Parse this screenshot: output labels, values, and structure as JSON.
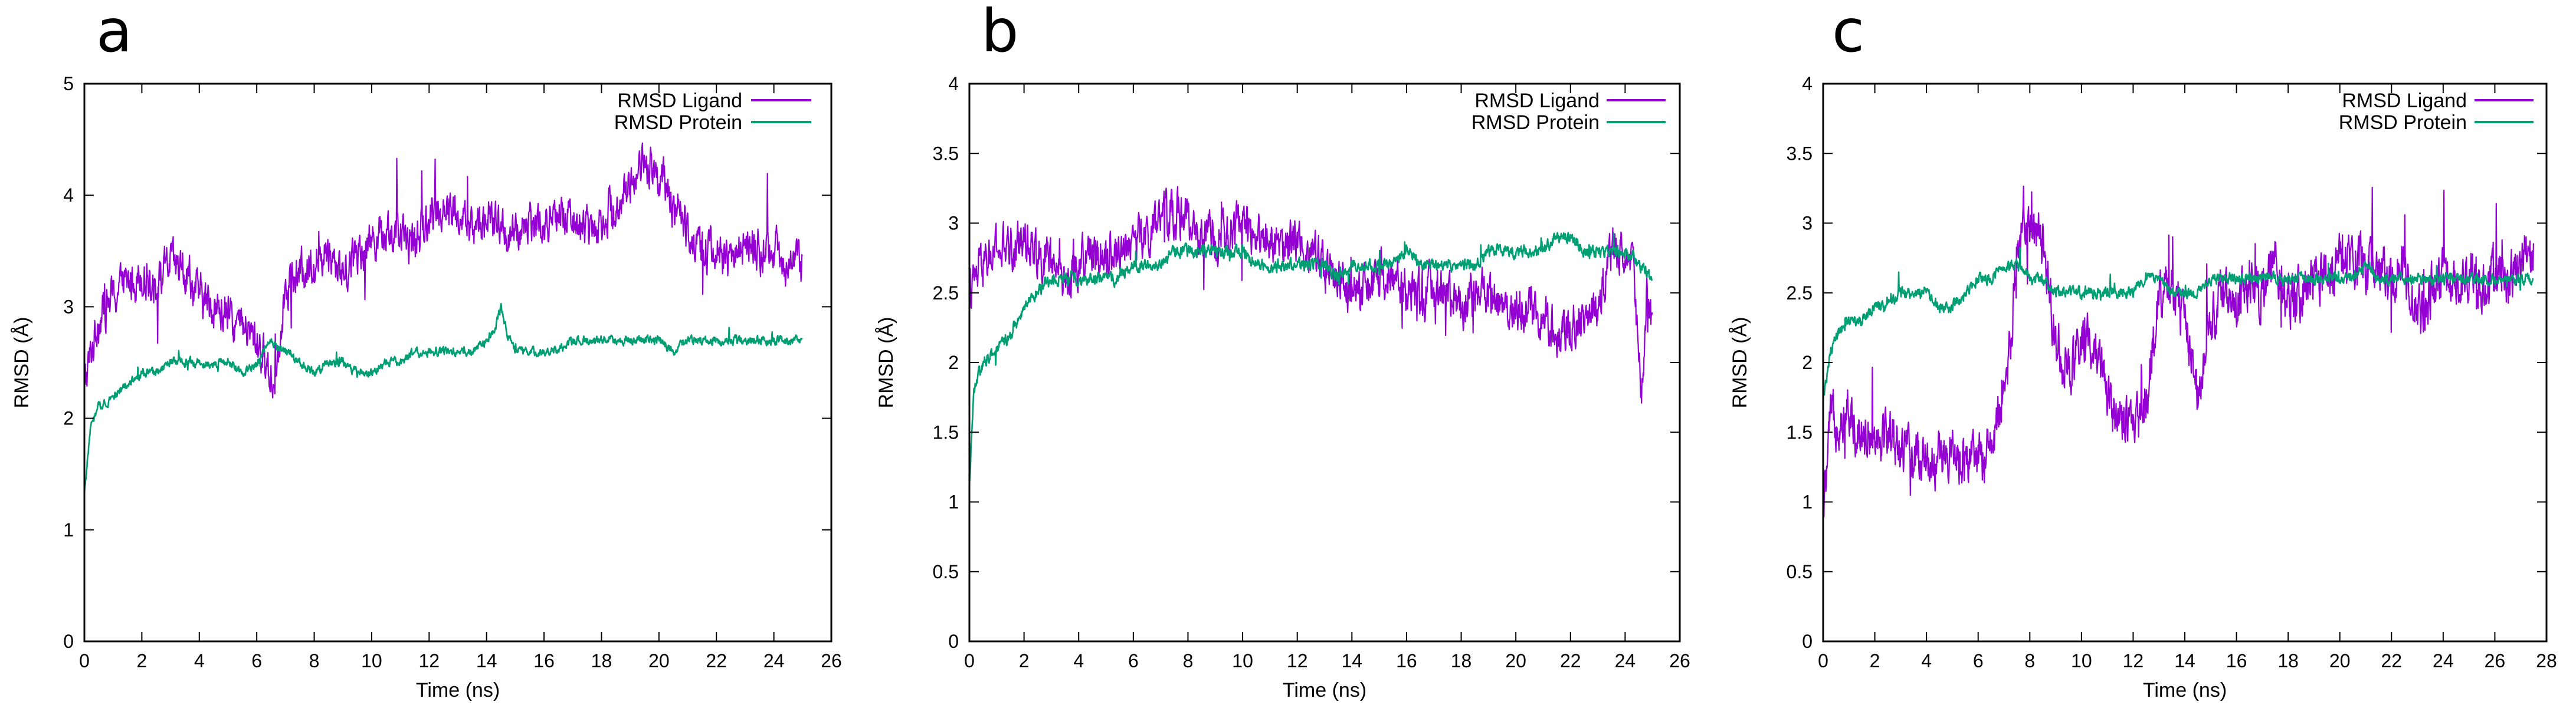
{
  "colors": {
    "ligand": "#9400d3",
    "protein": "#009e73",
    "axis": "#000000"
  },
  "chart_data": [
    {
      "type": "line",
      "panel_label": "a",
      "xlabel": "Time (ns)",
      "ylabel": "RMSD (Å)",
      "xlim": [
        0,
        26
      ],
      "ylim": [
        0,
        5
      ],
      "xticks": [
        "0",
        "2",
        "4",
        "6",
        "8",
        "10",
        "12",
        "14",
        "16",
        "18",
        "20",
        "22",
        "24",
        "26"
      ],
      "yticks": [
        "0",
        "1",
        "2",
        "3",
        "4",
        "5"
      ],
      "legend_position": "top-right",
      "series": [
        {
          "name": "RMSD Ligand",
          "key": "ligand",
          "x": [
            0,
            0.5,
            1,
            1.5,
            2,
            2.5,
            3,
            3.5,
            4,
            4.5,
            5,
            5.5,
            6,
            6.3,
            6.6,
            7,
            7.5,
            8,
            8.5,
            9,
            9.5,
            10,
            10.5,
            11,
            11.5,
            12,
            12.5,
            13,
            13.5,
            14,
            14.5,
            15,
            15.5,
            16,
            16.5,
            17,
            17.5,
            18,
            18.5,
            19,
            19.5,
            20,
            20.5,
            21,
            21.5,
            22,
            22.5,
            23,
            23.5,
            24,
            24.5,
            25
          ],
          "y": [
            2.3,
            2.9,
            3.1,
            3.2,
            3.3,
            3.2,
            3.4,
            3.3,
            3.1,
            3.0,
            2.9,
            2.8,
            2.7,
            2.5,
            2.3,
            3.2,
            3.3,
            3.4,
            3.5,
            3.3,
            3.5,
            3.6,
            3.7,
            3.6,
            3.6,
            3.8,
            3.9,
            3.8,
            3.7,
            3.8,
            3.7,
            3.6,
            3.8,
            3.7,
            3.8,
            3.8,
            3.7,
            3.8,
            3.9,
            4.1,
            4.3,
            4.2,
            3.9,
            3.7,
            3.5,
            3.5,
            3.4,
            3.6,
            3.5,
            3.5,
            3.4,
            3.4
          ],
          "noise": 0.33
        },
        {
          "name": "RMSD Protein",
          "key": "protein",
          "x": [
            0,
            0.2,
            0.5,
            1,
            1.5,
            2,
            2.5,
            3,
            3.5,
            4,
            4.5,
            5,
            5.5,
            6,
            6.5,
            7,
            7.5,
            8,
            8.5,
            9,
            9.5,
            10,
            10.5,
            11,
            11.5,
            12,
            12.5,
            13,
            13.5,
            14,
            14.3,
            14.5,
            14.8,
            15,
            15.5,
            16,
            16.5,
            17,
            17.5,
            18,
            18.5,
            19,
            19.5,
            20,
            20.5,
            21,
            21.5,
            22,
            22.5,
            23,
            23.5,
            24,
            24.5,
            25
          ],
          "y": [
            1.3,
            1.9,
            2.1,
            2.2,
            2.3,
            2.4,
            2.4,
            2.5,
            2.5,
            2.5,
            2.5,
            2.5,
            2.4,
            2.5,
            2.7,
            2.6,
            2.5,
            2.4,
            2.5,
            2.5,
            2.4,
            2.4,
            2.5,
            2.5,
            2.6,
            2.6,
            2.6,
            2.6,
            2.6,
            2.7,
            2.8,
            3.0,
            2.7,
            2.6,
            2.6,
            2.6,
            2.6,
            2.7,
            2.7,
            2.7,
            2.7,
            2.7,
            2.7,
            2.7,
            2.6,
            2.7,
            2.7,
            2.7,
            2.7,
            2.7,
            2.7,
            2.7,
            2.7,
            2.7
          ],
          "noise": 0.07
        }
      ]
    },
    {
      "type": "line",
      "panel_label": "b",
      "xlabel": "Time (ns)",
      "ylabel": "RMSD (Å)",
      "xlim": [
        0,
        26
      ],
      "ylim": [
        0,
        4
      ],
      "xticks": [
        "0",
        "2",
        "4",
        "6",
        "8",
        "10",
        "12",
        "14",
        "16",
        "18",
        "20",
        "22",
        "24",
        "26"
      ],
      "yticks": [
        "0",
        "0.5",
        "1",
        "1.5",
        "2",
        "2.5",
        "3",
        "3.5",
        "4"
      ],
      "legend_position": "top-right",
      "series": [
        {
          "name": "RMSD Ligand",
          "key": "ligand",
          "x": [
            0,
            0.5,
            1,
            1.5,
            2,
            2.5,
            3,
            3.5,
            4,
            4.5,
            5,
            5.5,
            6,
            6.5,
            7,
            7.5,
            8,
            8.5,
            9,
            9.5,
            10,
            10.5,
            11,
            11.5,
            12,
            12.5,
            13,
            13.5,
            14,
            14.5,
            15,
            15.5,
            16,
            16.5,
            17,
            17.5,
            18,
            18.5,
            19,
            19.5,
            20,
            20.5,
            21,
            21.5,
            22,
            22.5,
            23,
            23.5,
            24,
            24.3,
            24.6,
            24.8,
            25
          ],
          "y": [
            2.5,
            2.7,
            2.8,
            2.8,
            2.9,
            2.8,
            2.7,
            2.6,
            2.7,
            2.8,
            2.8,
            2.8,
            2.9,
            2.9,
            3.0,
            3.1,
            3.0,
            2.9,
            2.9,
            2.9,
            3.0,
            2.9,
            2.9,
            2.8,
            2.9,
            2.8,
            2.7,
            2.6,
            2.5,
            2.5,
            2.6,
            2.6,
            2.5,
            2.5,
            2.5,
            2.5,
            2.4,
            2.5,
            2.5,
            2.4,
            2.4,
            2.4,
            2.3,
            2.2,
            2.3,
            2.3,
            2.4,
            2.8,
            2.8,
            2.6,
            1.7,
            2.5,
            2.3
          ],
          "noise": 0.28
        },
        {
          "name": "RMSD Protein",
          "key": "protein",
          "x": [
            0,
            0.15,
            0.5,
            1,
            1.5,
            2,
            2.5,
            3,
            3.5,
            4,
            4.5,
            5,
            5.5,
            6,
            6.5,
            7,
            7.5,
            8,
            8.5,
            9,
            9.5,
            10,
            10.5,
            11,
            11.5,
            12,
            12.5,
            13,
            13.5,
            14,
            14.5,
            15,
            15.5,
            16,
            16.5,
            17,
            17.5,
            18,
            18.5,
            19,
            19.5,
            20,
            20.5,
            21,
            21.5,
            22,
            22.5,
            23,
            23.5,
            24,
            24.5,
            25
          ],
          "y": [
            1.1,
            1.8,
            2.0,
            2.1,
            2.2,
            2.4,
            2.5,
            2.6,
            2.6,
            2.6,
            2.6,
            2.6,
            2.6,
            2.7,
            2.7,
            2.7,
            2.8,
            2.8,
            2.8,
            2.8,
            2.8,
            2.8,
            2.7,
            2.7,
            2.7,
            2.7,
            2.7,
            2.7,
            2.6,
            2.7,
            2.7,
            2.7,
            2.7,
            2.8,
            2.7,
            2.7,
            2.7,
            2.7,
            2.7,
            2.8,
            2.8,
            2.8,
            2.8,
            2.8,
            2.9,
            2.9,
            2.8,
            2.8,
            2.8,
            2.8,
            2.7,
            2.6
          ],
          "noise": 0.08
        }
      ]
    },
    {
      "type": "line",
      "panel_label": "c",
      "xlabel": "Time (ns)",
      "ylabel": "RMSD (Å)",
      "xlim": [
        0,
        28
      ],
      "ylim": [
        0,
        4
      ],
      "xticks": [
        "0",
        "2",
        "4",
        "6",
        "8",
        "10",
        "12",
        "14",
        "16",
        "18",
        "20",
        "22",
        "24",
        "26",
        "28"
      ],
      "yticks": [
        "0",
        "0.5",
        "1",
        "1.5",
        "2",
        "2.5",
        "3",
        "3.5",
        "4"
      ],
      "legend_position": "top-right",
      "series": [
        {
          "name": "RMSD Ligand",
          "key": "ligand",
          "x": [
            0,
            0.3,
            0.6,
            1,
            1.5,
            2,
            2.5,
            3,
            3.5,
            4,
            4.5,
            5,
            5.5,
            6,
            6.5,
            7,
            7.3,
            7.6,
            8,
            8.5,
            9,
            9.5,
            10,
            10.5,
            11,
            11.5,
            12,
            12.5,
            13,
            13.5,
            14,
            14.5,
            15,
            15.5,
            16,
            16.5,
            17,
            17.5,
            18,
            18.5,
            19,
            19.5,
            20,
            20.5,
            21,
            21.5,
            22,
            22.5,
            23,
            23.5,
            24,
            24.5,
            25,
            25.5,
            26,
            26.5,
            27,
            27.5
          ],
          "y": [
            0.9,
            1.6,
            1.6,
            1.6,
            1.5,
            1.5,
            1.5,
            1.4,
            1.3,
            1.3,
            1.3,
            1.3,
            1.3,
            1.3,
            1.4,
            1.7,
            2.3,
            2.9,
            3.0,
            2.8,
            2.2,
            1.9,
            2.1,
            2.2,
            1.8,
            1.6,
            1.5,
            1.7,
            2.5,
            2.5,
            2.3,
            1.8,
            2.3,
            2.5,
            2.4,
            2.6,
            2.5,
            2.7,
            2.4,
            2.5,
            2.6,
            2.6,
            2.7,
            2.8,
            2.7,
            2.7,
            2.6,
            2.7,
            2.3,
            2.5,
            2.6,
            2.6,
            2.6,
            2.5,
            2.6,
            2.6,
            2.7,
            2.8
          ],
          "noise": 0.32
        },
        {
          "name": "RMSD Protein",
          "key": "protein",
          "x": [
            0,
            0.2,
            0.5,
            1,
            1.5,
            2,
            2.5,
            3,
            3.5,
            4,
            4.5,
            5,
            5.5,
            6,
            6.5,
            7,
            7.5,
            8,
            8.5,
            9,
            9.5,
            10,
            10.5,
            11,
            11.5,
            12,
            12.5,
            13,
            13.5,
            14,
            14.5,
            15,
            15.5,
            16,
            16.5,
            17,
            17.5,
            18,
            18.5,
            19,
            19.5,
            20,
            20.5,
            21,
            21.5,
            22,
            22.5,
            23,
            23.5,
            24,
            24.5,
            25,
            25.5,
            26,
            26.5,
            27,
            27.5
          ],
          "y": [
            1.7,
            2.0,
            2.2,
            2.3,
            2.3,
            2.4,
            2.4,
            2.5,
            2.5,
            2.5,
            2.4,
            2.4,
            2.5,
            2.6,
            2.6,
            2.7,
            2.7,
            2.6,
            2.6,
            2.5,
            2.5,
            2.5,
            2.5,
            2.5,
            2.5,
            2.5,
            2.6,
            2.6,
            2.5,
            2.5,
            2.5,
            2.6,
            2.6,
            2.6,
            2.6,
            2.6,
            2.6,
            2.6,
            2.6,
            2.6,
            2.6,
            2.6,
            2.6,
            2.7,
            2.6,
            2.6,
            2.6,
            2.6,
            2.6,
            2.6,
            2.6,
            2.6,
            2.6,
            2.6,
            2.6,
            2.6,
            2.6
          ],
          "noise": 0.07
        }
      ]
    }
  ]
}
